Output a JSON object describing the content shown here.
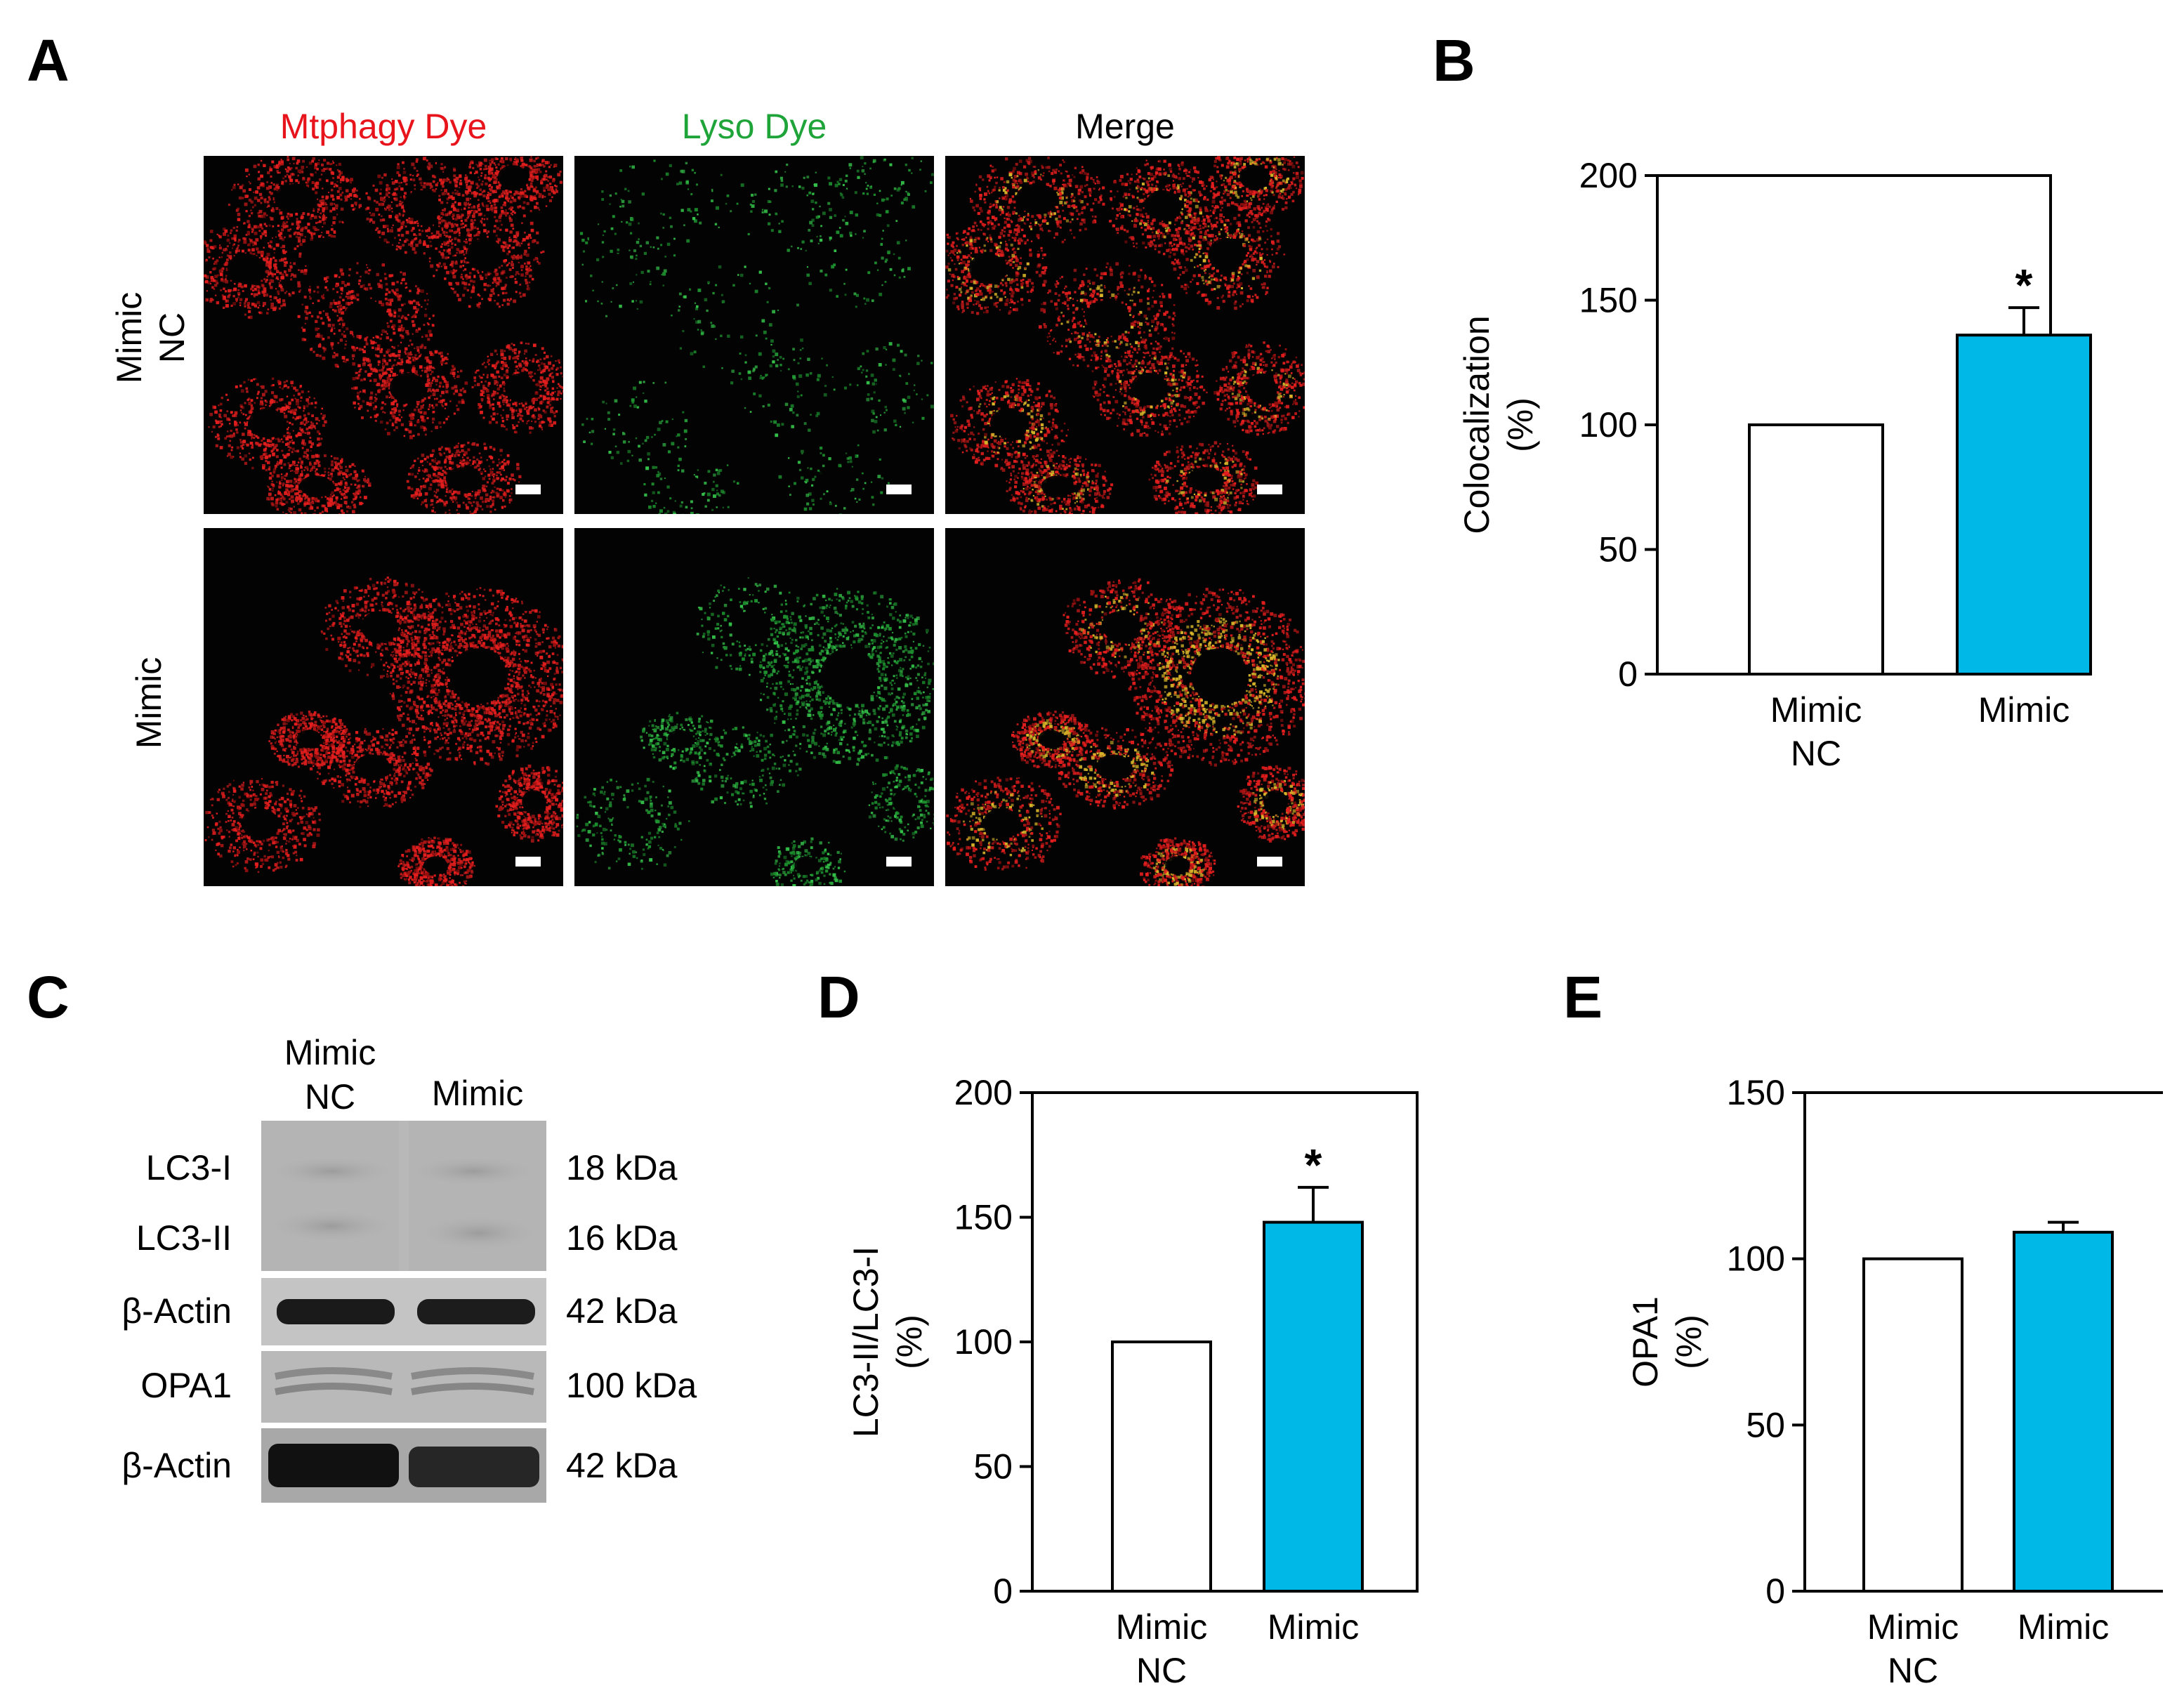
{
  "panels": {
    "A": {
      "letter": "A",
      "columns": [
        "Mtphagy Dye",
        "Lyso Dye",
        "Merge"
      ],
      "column_colors": [
        "#e8141c",
        "#1fa43a",
        "#000000"
      ],
      "rows": [
        {
          "line1": "Mimic",
          "line2": "NC"
        },
        {
          "line1": "Mimic",
          "line2": ""
        }
      ]
    },
    "B": {
      "letter": "B"
    },
    "C": {
      "letter": "C",
      "lanes": [
        {
          "line1": "Mimic",
          "line2": "NC"
        },
        {
          "line1": "Mimic",
          "line2": ""
        }
      ],
      "rows": [
        {
          "protein": "LC3-I",
          "mw": "18 kDa"
        },
        {
          "protein": "LC3-II",
          "mw": "16 kDa"
        },
        {
          "protein": "β-Actin",
          "mw": "42 kDa"
        },
        {
          "protein": "OPA1",
          "mw": "100 kDa"
        },
        {
          "protein": "β-Actin",
          "mw": "42 kDa"
        }
      ]
    },
    "D": {
      "letter": "D"
    },
    "E": {
      "letter": "E"
    }
  },
  "chart_data": [
    {
      "panel": "B",
      "type": "bar",
      "categories": [
        [
          "Mimic",
          "NC"
        ],
        [
          "Mimic"
        ]
      ],
      "values": [
        100,
        136
      ],
      "errors": [
        0,
        11
      ],
      "significance": [
        "",
        "*"
      ],
      "bar_colors": [
        "#ffffff",
        "#00b8e8"
      ],
      "ylabel": [
        "Colocalization",
        "(%)"
      ],
      "ylim": [
        0,
        200
      ],
      "yticks": [
        0,
        50,
        100,
        150,
        200
      ]
    },
    {
      "panel": "D",
      "type": "bar",
      "categories": [
        [
          "Mimic",
          "NC"
        ],
        [
          "Mimic"
        ]
      ],
      "values": [
        100,
        148
      ],
      "errors": [
        0,
        14
      ],
      "significance": [
        "",
        "*"
      ],
      "bar_colors": [
        "#ffffff",
        "#00b8e8"
      ],
      "ylabel": [
        "LC3-II/LC3-I",
        "(%)"
      ],
      "ylim": [
        0,
        200
      ],
      "yticks": [
        0,
        50,
        100,
        150,
        200
      ]
    },
    {
      "panel": "E",
      "type": "bar",
      "categories": [
        [
          "Mimic",
          "NC"
        ],
        [
          "Mimic"
        ]
      ],
      "values": [
        100,
        108
      ],
      "errors": [
        0,
        3
      ],
      "significance": [
        "",
        ""
      ],
      "bar_colors": [
        "#ffffff",
        "#00b8e8"
      ],
      "ylabel": [
        "OPA1",
        "(%)"
      ],
      "ylim": [
        0,
        150
      ],
      "yticks": [
        0,
        50,
        100,
        150
      ]
    }
  ]
}
